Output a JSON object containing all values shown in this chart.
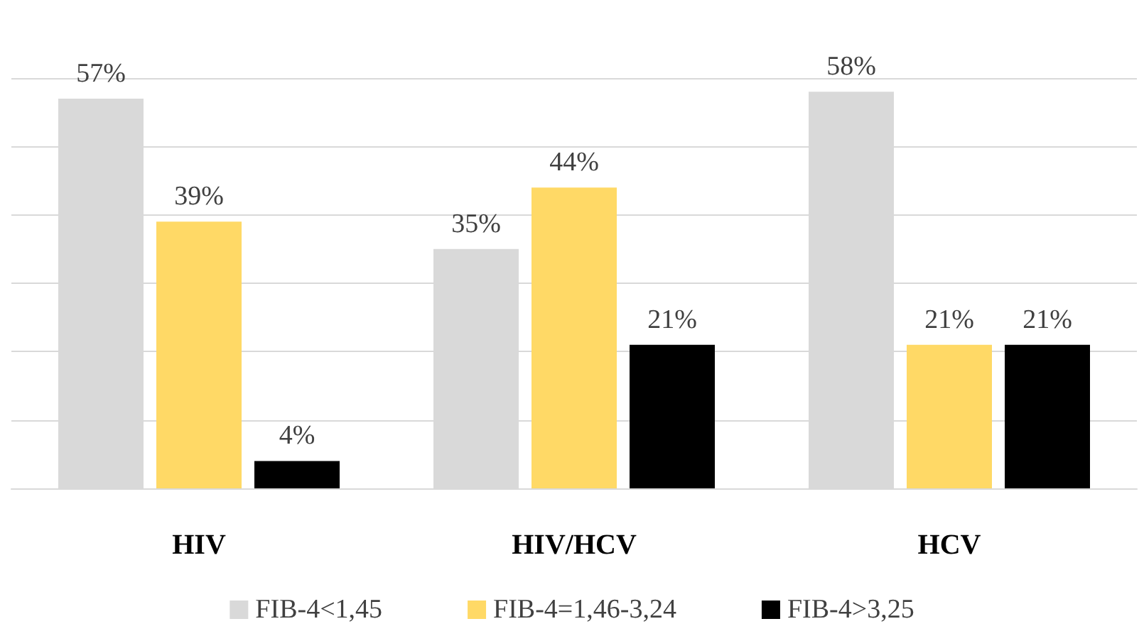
{
  "chart_data": {
    "type": "bar",
    "categories": [
      "HIV",
      "HIV/HCV",
      "HCV"
    ],
    "series": [
      {
        "name": "FIB-4<1,45",
        "color": "#d9d9d9",
        "values": [
          57,
          35,
          58
        ],
        "value_labels": [
          "57%",
          "35%",
          "58%"
        ]
      },
      {
        "name": "FIB-4=1,46-3,24",
        "color": "#ffd966",
        "values": [
          39,
          44,
          21
        ],
        "value_labels": [
          "39%",
          "44%",
          "21%"
        ]
      },
      {
        "name": "FIB-4>3,25",
        "color": "#000000",
        "values": [
          4,
          21,
          21
        ],
        "value_labels": [
          "4%",
          "21%",
          "21%"
        ]
      }
    ],
    "tick_labels": "x",
    "grid": "y",
    "legend": "bottom"
  }
}
